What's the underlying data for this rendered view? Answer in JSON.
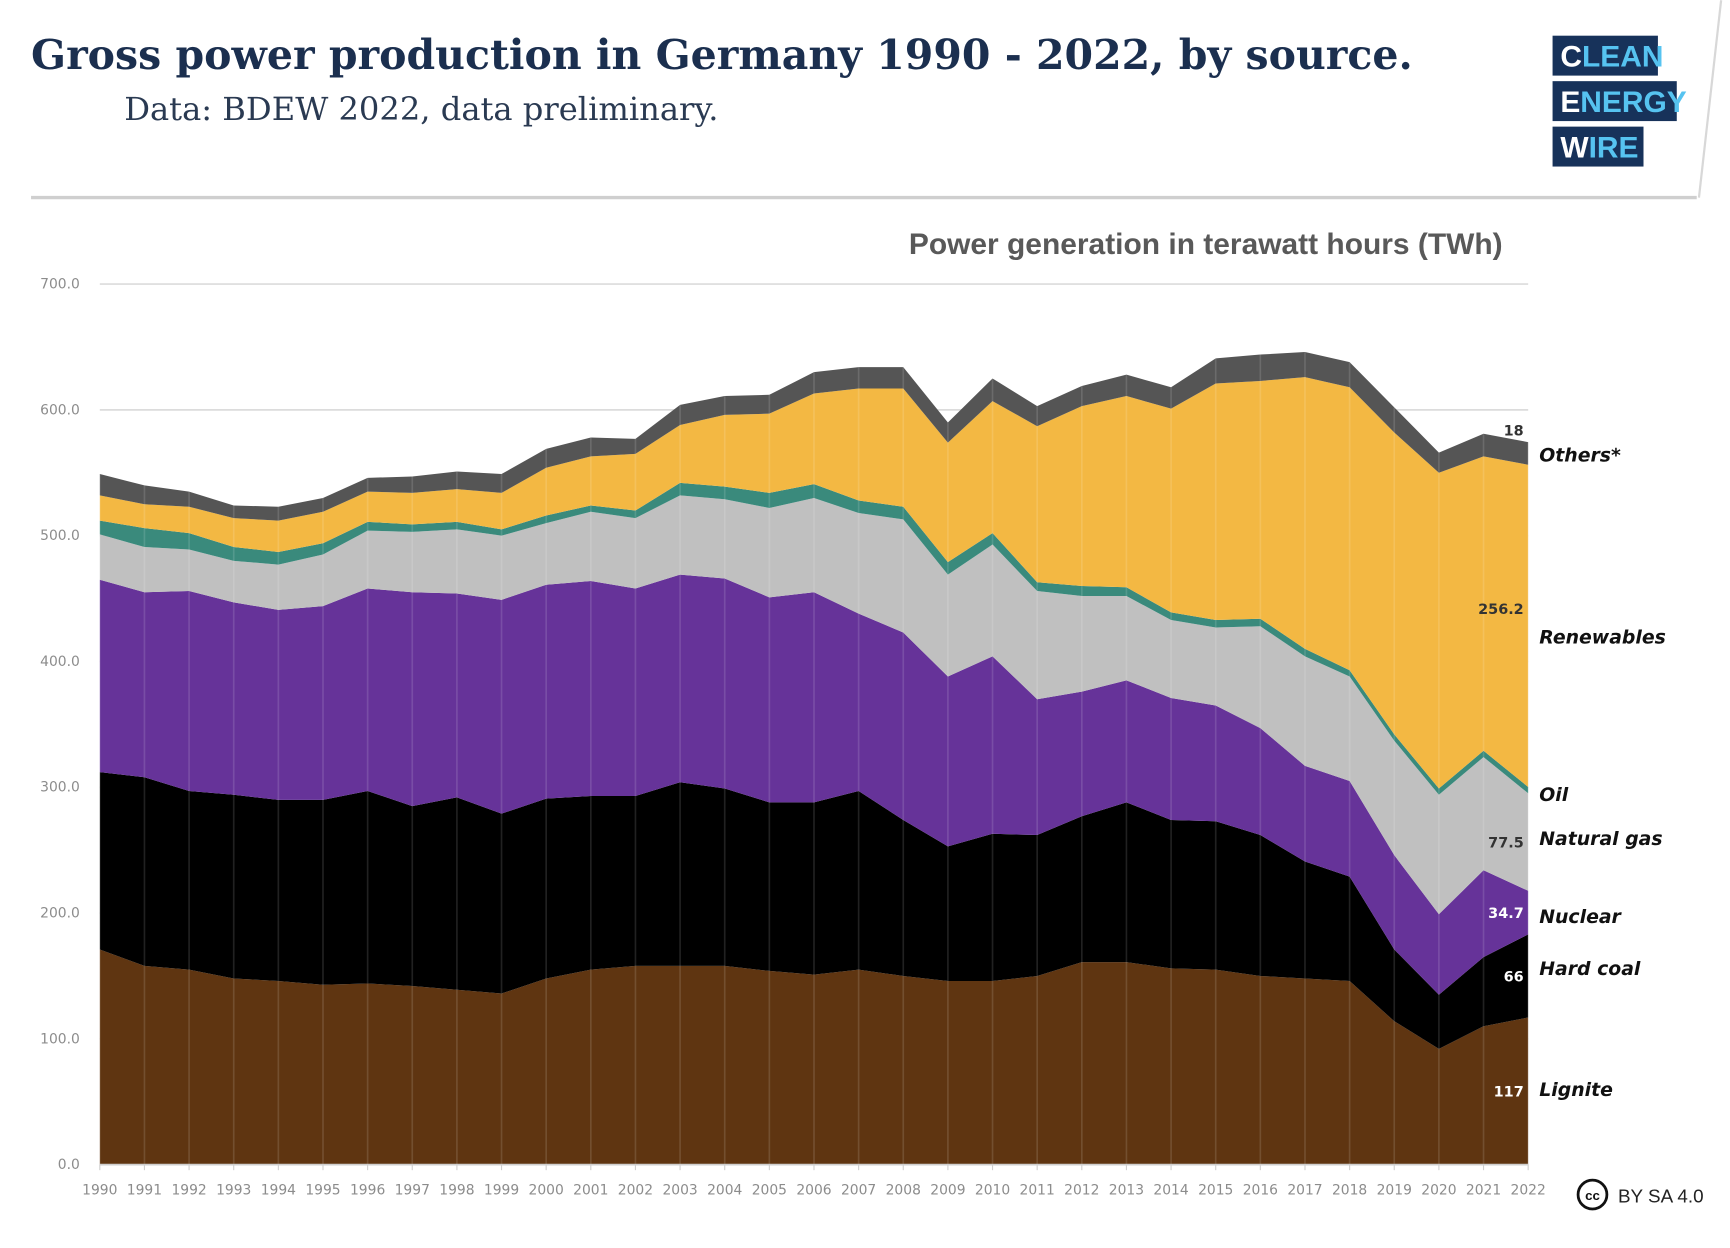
{
  "header": {
    "title": "Gross power production in Germany 1990 - 2022, by source.",
    "subtitle": "Data: BDEW 2022, data preliminary.",
    "logo": {
      "lines": [
        [
          "C",
          "LEAN"
        ],
        [
          "E",
          "NERGY"
        ],
        [
          "W",
          "IRE"
        ]
      ],
      "text": "CLEAN ENERGY WIRE"
    }
  },
  "license": {
    "icon": "creative-commons-icon",
    "text": "BY SA 4.0"
  },
  "chart_data": {
    "type": "area",
    "stacked": true,
    "title": "Power generation in terawatt hours (TWh)",
    "xlabel": "",
    "ylabel": "",
    "ylim": [
      0,
      700
    ],
    "yticks": [
      "0.0",
      "100.0",
      "200.0",
      "300.0",
      "400.0",
      "500.0",
      "600.0",
      "700.0"
    ],
    "grid": true,
    "legend": "right, inline labels",
    "x": [
      1990,
      1991,
      1992,
      1993,
      1994,
      1995,
      1996,
      1997,
      1998,
      1999,
      2000,
      2001,
      2002,
      2003,
      2004,
      2005,
      2006,
      2007,
      2008,
      2009,
      2010,
      2011,
      2012,
      2013,
      2014,
      2015,
      2016,
      2017,
      2018,
      2019,
      2020,
      2021,
      2022
    ],
    "series": [
      {
        "name": "Lignite",
        "color": "#5f3511",
        "values": [
          171,
          158,
          155,
          148,
          146,
          143,
          144,
          142,
          139,
          136,
          148,
          155,
          158,
          158,
          158,
          154,
          151,
          155,
          150,
          146,
          146,
          150,
          161,
          161,
          156,
          155,
          150,
          148,
          146,
          114,
          92,
          110,
          117
        ],
        "end_label": "117",
        "end_label_color": "#ffffff"
      },
      {
        "name": "Hard coal",
        "color": "#000000",
        "values": [
          141,
          150,
          142,
          146,
          144,
          147,
          153,
          143,
          153,
          143,
          143,
          138,
          135,
          146,
          141,
          134,
          137,
          142,
          124,
          107,
          117,
          112,
          116,
          127,
          118,
          118,
          112,
          93,
          83,
          57,
          43,
          55,
          66
        ],
        "end_label": "66",
        "end_label_color": "#ffffff"
      },
      {
        "name": "Nuclear",
        "color": "#663399",
        "values": [
          153,
          147,
          159,
          153,
          151,
          154,
          161,
          170,
          162,
          170,
          170,
          171,
          165,
          165,
          167,
          163,
          167,
          141,
          149,
          135,
          141,
          108,
          99,
          97,
          97,
          92,
          85,
          76,
          76,
          75,
          64,
          69,
          34.7
        ],
        "end_label": "34.7",
        "end_label_color": "#ffffff"
      },
      {
        "name": "Natural gas",
        "color": "#c0c0c0",
        "values": [
          36,
          36,
          33,
          33,
          36,
          41,
          46,
          48,
          51,
          51,
          49,
          55,
          56,
          63,
          63,
          71,
          75,
          80,
          90,
          81,
          89,
          86,
          76,
          67,
          62,
          62,
          81,
          87,
          83,
          91,
          95,
          90,
          77.5
        ],
        "end_label": "77.5",
        "end_label_color": "#333333"
      },
      {
        "name": "Oil",
        "color": "#3a8a7c",
        "values": [
          11,
          15,
          13,
          11,
          10,
          9,
          7,
          6,
          6,
          5,
          6,
          5,
          6,
          10,
          10,
          12,
          11,
          10,
          10,
          10,
          9,
          7,
          8,
          7,
          6,
          6,
          6,
          6,
          5,
          5,
          5,
          5,
          5
        ]
      },
      {
        "name": "Renewables",
        "color": "#f3b843",
        "values": [
          20,
          19,
          21,
          23,
          25,
          25,
          24,
          25,
          26,
          29,
          38,
          39,
          45,
          46,
          57,
          63,
          72,
          89,
          94,
          95,
          105,
          124,
          143,
          152,
          162,
          188,
          189,
          216,
          225,
          240,
          251,
          234,
          256.2
        ],
        "end_label": "256.2",
        "end_label_color": "#333333"
      },
      {
        "name": "Others*",
        "color": "#555555",
        "values": [
          17,
          15,
          12,
          10,
          11,
          11,
          11,
          13,
          14,
          15,
          15,
          15,
          12,
          16,
          15,
          15,
          17,
          17,
          17,
          16,
          18,
          16,
          16,
          17,
          17,
          20,
          21,
          20,
          20,
          20,
          16,
          18,
          18
        ],
        "end_label": "18",
        "end_label_color": "#333333"
      }
    ]
  }
}
